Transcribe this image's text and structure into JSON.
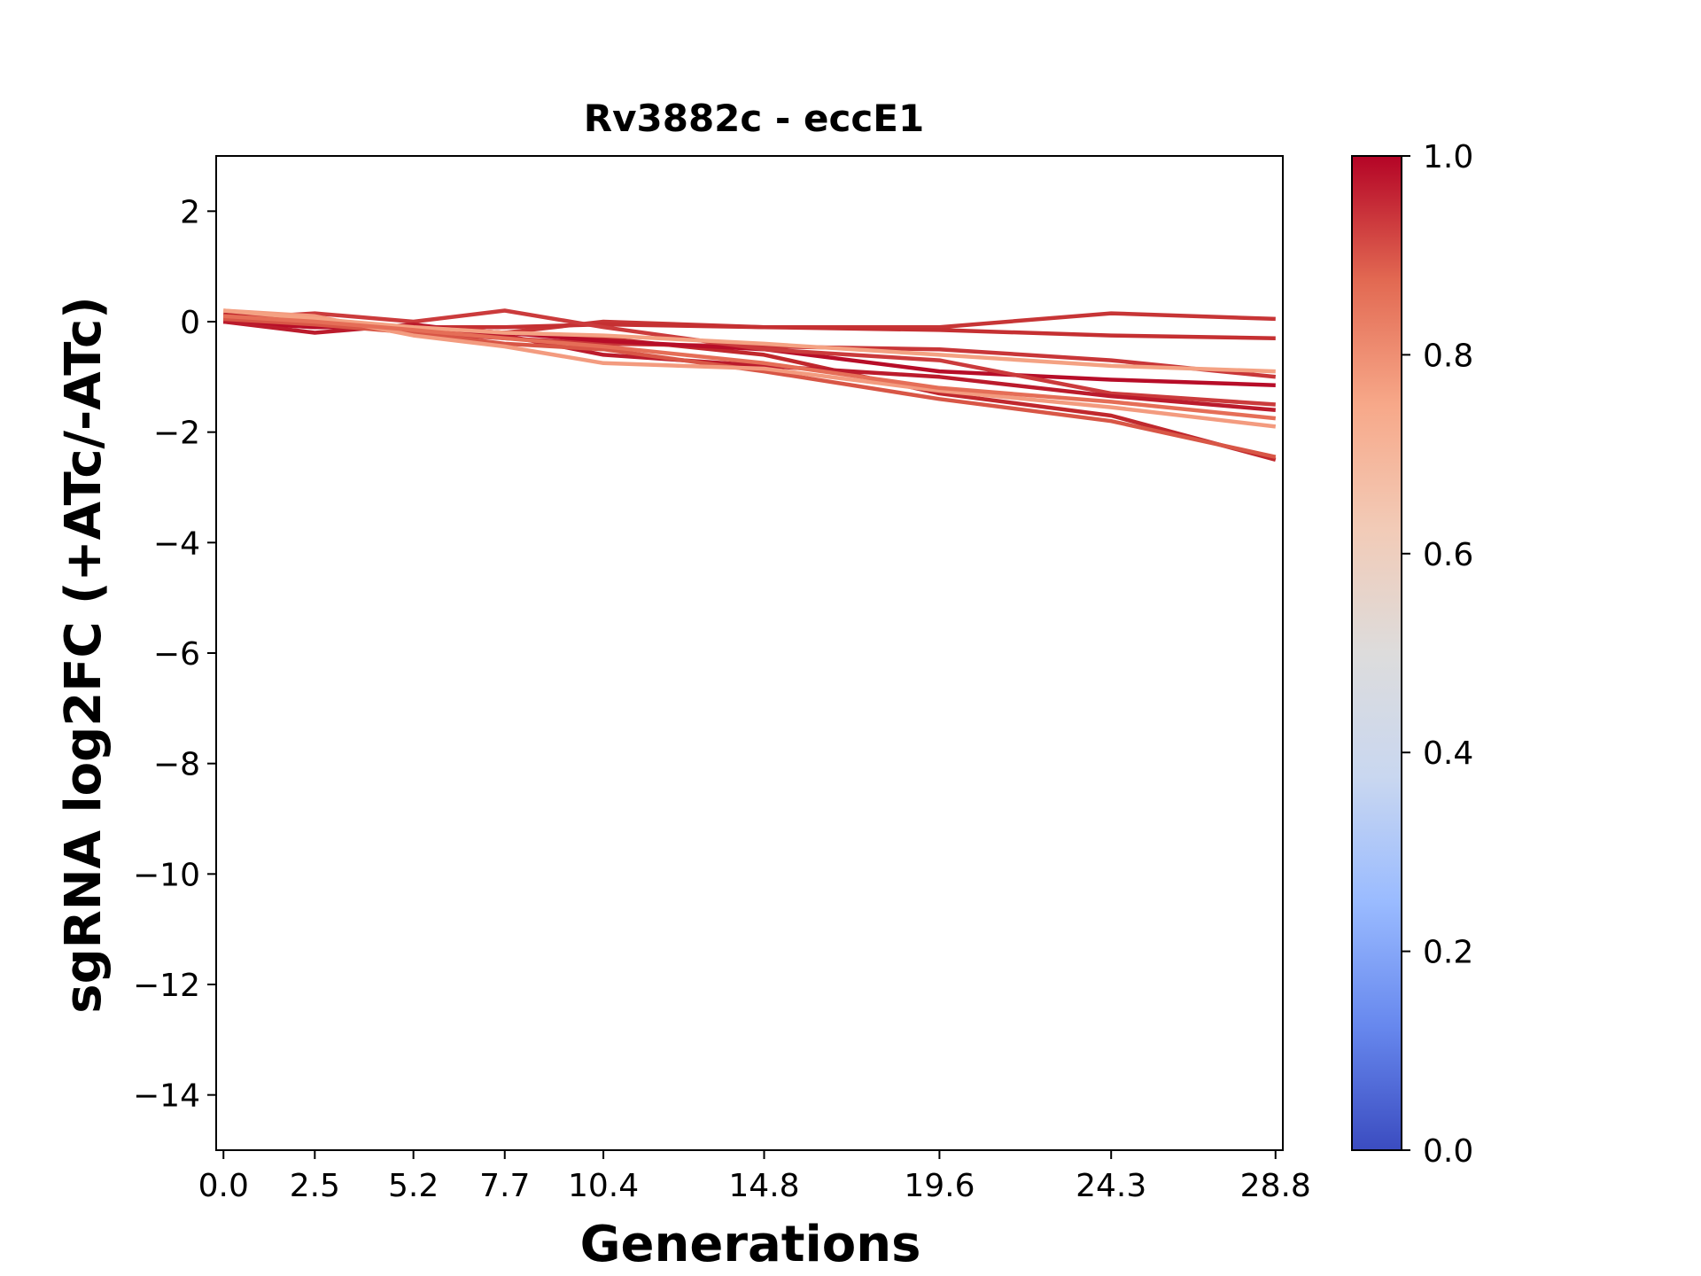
{
  "chart_data": {
    "type": "line",
    "title": "Rv3882c - eccE1",
    "xlabel": "Generations",
    "ylabel": "sgRNA log2FC (+ATc/-ATc)",
    "x": [
      0.0,
      2.5,
      5.2,
      7.7,
      10.4,
      14.8,
      19.6,
      24.3,
      28.8
    ],
    "xticks": [
      "0.0",
      "2.5",
      "5.2",
      "7.7",
      "10.4",
      "14.8",
      "19.6",
      "24.3",
      "28.8"
    ],
    "xlim": [
      -0.2,
      29.0
    ],
    "ylim": [
      -15,
      3
    ],
    "yticks": [
      2,
      0,
      -2,
      -4,
      -6,
      -8,
      -10,
      -12,
      -14
    ],
    "ytick_labels": [
      "2",
      "0",
      "−2",
      "−4",
      "−6",
      "−8",
      "−10",
      "−12",
      "−14"
    ],
    "grid": false,
    "legend": "none",
    "colorbar": {
      "cmap": "coolwarm",
      "range": [
        0.0,
        1.0
      ],
      "ticks": [
        0.0,
        0.2,
        0.4,
        0.6,
        0.8,
        1.0
      ],
      "tick_labels": [
        "0.0",
        "0.2",
        "0.4",
        "0.6",
        "0.8",
        "1.0"
      ],
      "stops": [
        "#3b4cc0",
        "#6788ee",
        "#9abbff",
        "#c9d7f0",
        "#dddcdc",
        "#f2cbb7",
        "#f7a889",
        "#e26952",
        "#b40426"
      ]
    },
    "series": [
      {
        "values": [
          0.15,
          0.05,
          -0.15,
          -0.2,
          -0.3,
          -0.6,
          -1.3,
          -1.7,
          -2.5
        ],
        "color": "#c0282d"
      },
      {
        "values": [
          0.0,
          -0.1,
          -0.1,
          -0.2,
          0.0,
          -0.1,
          -0.1,
          0.15,
          0.05
        ],
        "color": "#c73536"
      },
      {
        "values": [
          0.05,
          0.0,
          -0.1,
          -0.1,
          -0.05,
          -0.1,
          -0.15,
          -0.25,
          -0.3
        ],
        "color": "#c53032"
      },
      {
        "values": [
          0.1,
          0.0,
          -0.2,
          -0.3,
          -0.4,
          -0.45,
          -0.5,
          -0.7,
          -1.0
        ],
        "color": "#c83638"
      },
      {
        "values": [
          0.0,
          -0.1,
          -0.1,
          -0.2,
          -0.35,
          -0.5,
          -0.9,
          -1.05,
          -1.15
        ],
        "color": "#b70d28"
      },
      {
        "values": [
          0.05,
          0.15,
          0.0,
          0.2,
          -0.1,
          -0.5,
          -0.7,
          -1.3,
          -1.5
        ],
        "color": "#cb3b3c"
      },
      {
        "values": [
          0.0,
          -0.2,
          -0.05,
          -0.25,
          -0.6,
          -0.8,
          -1.0,
          -1.35,
          -1.6
        ],
        "color": "#bb1b2c"
      },
      {
        "values": [
          0.05,
          -0.05,
          -0.2,
          -0.4,
          -0.5,
          -0.9,
          -1.4,
          -1.8,
          -2.45
        ],
        "color": "#d85646"
      },
      {
        "values": [
          0.2,
          0.1,
          -0.25,
          -0.45,
          -0.75,
          -0.85,
          -1.25,
          -1.55,
          -1.9
        ],
        "color": "#f39b7f"
      },
      {
        "values": [
          0.2,
          0.05,
          -0.1,
          -0.2,
          -0.25,
          -0.4,
          -0.6,
          -0.8,
          -0.9
        ],
        "color": "#f4a283"
      },
      {
        "values": [
          0.1,
          0.0,
          -0.15,
          -0.3,
          -0.45,
          -0.75,
          -1.2,
          -1.45,
          -1.75
        ],
        "color": "#e56e57"
      }
    ]
  }
}
